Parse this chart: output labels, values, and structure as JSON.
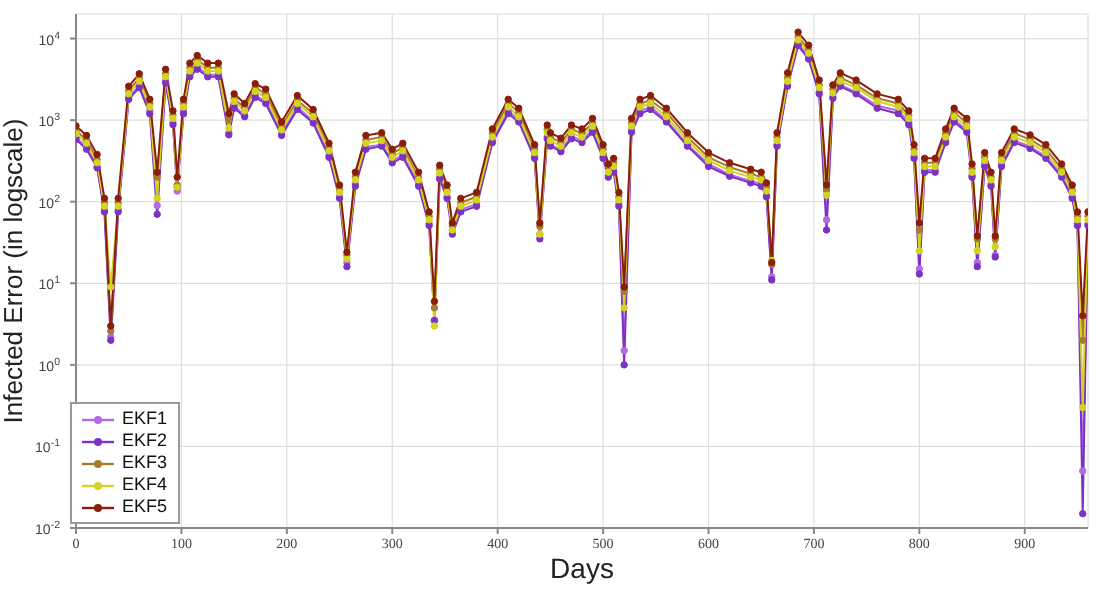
{
  "chart_data": {
    "type": "line",
    "xlabel": "Days",
    "ylabel": "Infected Error (in logscale)",
    "log": "y",
    "grid": true,
    "legend": "bottom left",
    "marker": "circle",
    "line_style": "solid",
    "xlim": [
      0,
      960
    ],
    "xticks": [
      0,
      100,
      200,
      300,
      400,
      500,
      600,
      700,
      800,
      900
    ],
    "ylim": [
      0.01,
      20000
    ],
    "yticks": [
      {
        "value": 0.01,
        "label": "10$^{-2}$"
      },
      {
        "value": 0.1,
        "label": "10$^{-1}$"
      },
      {
        "value": 1,
        "label": "10$^{0}$"
      },
      {
        "value": 10,
        "label": "10$^{1}$"
      },
      {
        "value": 100,
        "label": "10$^{2}$"
      },
      {
        "value": 1000,
        "label": "10$^{3}$"
      },
      {
        "value": 10000,
        "label": "10$^{4}$"
      }
    ],
    "x": [
      0,
      10,
      20,
      27,
      33,
      40,
      50,
      60,
      70,
      77,
      85,
      92,
      96,
      102,
      108,
      115,
      125,
      135,
      145,
      150,
      160,
      170,
      180,
      195,
      210,
      225,
      240,
      250,
      257,
      265,
      275,
      290,
      300,
      310,
      325,
      335,
      340,
      345,
      352,
      357,
      365,
      380,
      395,
      410,
      420,
      435,
      440,
      447,
      450,
      460,
      470,
      480,
      490,
      500,
      505,
      510,
      515,
      520,
      527,
      535,
      545,
      560,
      580,
      600,
      620,
      640,
      650,
      655,
      660,
      665,
      675,
      685,
      695,
      705,
      712,
      718,
      725,
      740,
      760,
      780,
      790,
      795,
      800,
      805,
      815,
      825,
      833,
      845,
      850,
      855,
      862,
      868,
      872,
      878,
      890,
      905,
      920,
      935,
      945,
      950,
      955,
      960
    ],
    "series": [
      {
        "name": "EKF1",
        "color": "#b46ae4",
        "values": [
          610,
          470,
          270,
          80,
          2.2,
          80,
          1900,
          2650,
          1300,
          90,
          3000,
          940,
          135,
          1300,
          3600,
          4500,
          3600,
          3600,
          700,
          1500,
          1150,
          2000,
          1700,
          680,
          1450,
          970,
          370,
          115,
          18,
          165,
          470,
          500,
          320,
          370,
          165,
          54,
          3.5,
          200,
          115,
          45,
          80,
          94,
          560,
          1300,
          1000,
          360,
          40,
          630,
          500,
          430,
          630,
          560,
          760,
          360,
          210,
          245,
          94,
          1.5,
          760,
          1300,
          1450,
          1000,
          500,
          290,
          215,
          180,
          165,
          120,
          12,
          500,
          2700,
          8600,
          6000,
          2200,
          60,
          1950,
          2700,
          2200,
          1500,
          1300,
          940,
          360,
          15,
          245,
          245,
          560,
          1000,
          760,
          210,
          18,
          290,
          165,
          22,
          290,
          560,
          475,
          360,
          210,
          115,
          54,
          0.05,
          54
        ]
      },
      {
        "name": "EKF2",
        "color": "#7b33c4",
        "values": [
          580,
          440,
          260,
          75,
          2,
          75,
          1800,
          2500,
          1200,
          70,
          2850,
          880,
          150,
          1200,
          3400,
          4200,
          3400,
          3400,
          660,
          1400,
          1100,
          1900,
          1600,
          650,
          1350,
          920,
          350,
          110,
          16,
          155,
          440,
          480,
          300,
          350,
          155,
          51,
          3.5,
          190,
          110,
          40,
          75,
          88,
          530,
          1200,
          950,
          340,
          35,
          590,
          480,
          410,
          590,
          530,
          710,
          340,
          200,
          230,
          88,
          1,
          710,
          1200,
          1350,
          950,
          480,
          270,
          205,
          170,
          155,
          115,
          11,
          480,
          2600,
          8200,
          5600,
          2100,
          45,
          1850,
          2600,
          2100,
          1400,
          1200,
          880,
          340,
          13,
          230,
          230,
          530,
          950,
          710,
          200,
          16,
          270,
          155,
          21,
          270,
          530,
          450,
          340,
          200,
          110,
          51,
          0.015,
          51
        ]
      },
      {
        "name": "EKF3",
        "color": "#a57d2c",
        "values": [
          750,
          570,
          330,
          97,
          2.6,
          97,
          2300,
          3300,
          1600,
          200,
          3700,
          1150,
          160,
          1600,
          4400,
          5500,
          4400,
          4400,
          1000,
          1850,
          1400,
          2500,
          2100,
          840,
          1750,
          1200,
          460,
          140,
          22,
          200,
          570,
          620,
          390,
          460,
          200,
          66,
          5,
          250,
          140,
          50,
          97,
          115,
          690,
          1600,
          1250,
          440,
          50,
          770,
          620,
          530,
          770,
          690,
          920,
          440,
          255,
          300,
          115,
          8,
          920,
          1600,
          1750,
          1250,
          620,
          350,
          265,
          220,
          200,
          150,
          17,
          620,
          3300,
          10500,
          7300,
          2700,
          140,
          2400,
          3300,
          2700,
          1850,
          1600,
          1150,
          440,
          45,
          300,
          300,
          690,
          1250,
          920,
          255,
          35,
          350,
          200,
          35,
          350,
          690,
          580,
          440,
          255,
          140,
          66,
          2,
          66
        ]
      },
      {
        "name": "EKF4",
        "color": "#d2d41e",
        "values": [
          680,
          520,
          300,
          88,
          9,
          88,
          2100,
          3000,
          1450,
          110,
          3400,
          1050,
          150,
          1450,
          4000,
          5000,
          4000,
          4000,
          800,
          1700,
          1300,
          2250,
          1900,
          760,
          1600,
          1100,
          420,
          130,
          20,
          185,
          520,
          560,
          350,
          420,
          185,
          60,
          3,
          225,
          130,
          45,
          88,
          105,
          620,
          1450,
          1100,
          400,
          40,
          700,
          560,
          480,
          700,
          620,
          840,
          400,
          230,
          270,
          105,
          5,
          840,
          1450,
          1600,
          1100,
          560,
          320,
          240,
          200,
          185,
          135,
          19,
          560,
          3000,
          9600,
          6600,
          2500,
          120,
          2150,
          3000,
          2500,
          1700,
          1450,
          1050,
          400,
          25,
          270,
          270,
          620,
          1100,
          840,
          230,
          25,
          320,
          185,
          28,
          320,
          620,
          530,
          400,
          230,
          130,
          60,
          0.3,
          60
        ]
      },
      {
        "name": "EKF5",
        "color": "#8b1e0a",
        "values": [
          850,
          650,
          380,
          110,
          3,
          110,
          2600,
          3700,
          1800,
          230,
          4200,
          1300,
          200,
          1800,
          5000,
          6200,
          5000,
          5000,
          1200,
          2100,
          1600,
          2800,
          2400,
          950,
          2000,
          1350,
          520,
          160,
          24,
          230,
          650,
          700,
          440,
          520,
          230,
          75,
          6,
          280,
          160,
          55,
          110,
          130,
          780,
          1800,
          1400,
          500,
          55,
          870,
          700,
          600,
          870,
          780,
          1050,
          500,
          290,
          340,
          130,
          9,
          1050,
          1800,
          2000,
          1400,
          700,
          400,
          300,
          250,
          230,
          170,
          18,
          700,
          3800,
          12000,
          8300,
          3100,
          160,
          2700,
          3800,
          3100,
          2100,
          1800,
          1300,
          500,
          55,
          340,
          340,
          780,
          1400,
          1050,
          290,
          38,
          400,
          230,
          38,
          400,
          780,
          660,
          500,
          290,
          160,
          75,
          4,
          75
        ]
      }
    ]
  }
}
